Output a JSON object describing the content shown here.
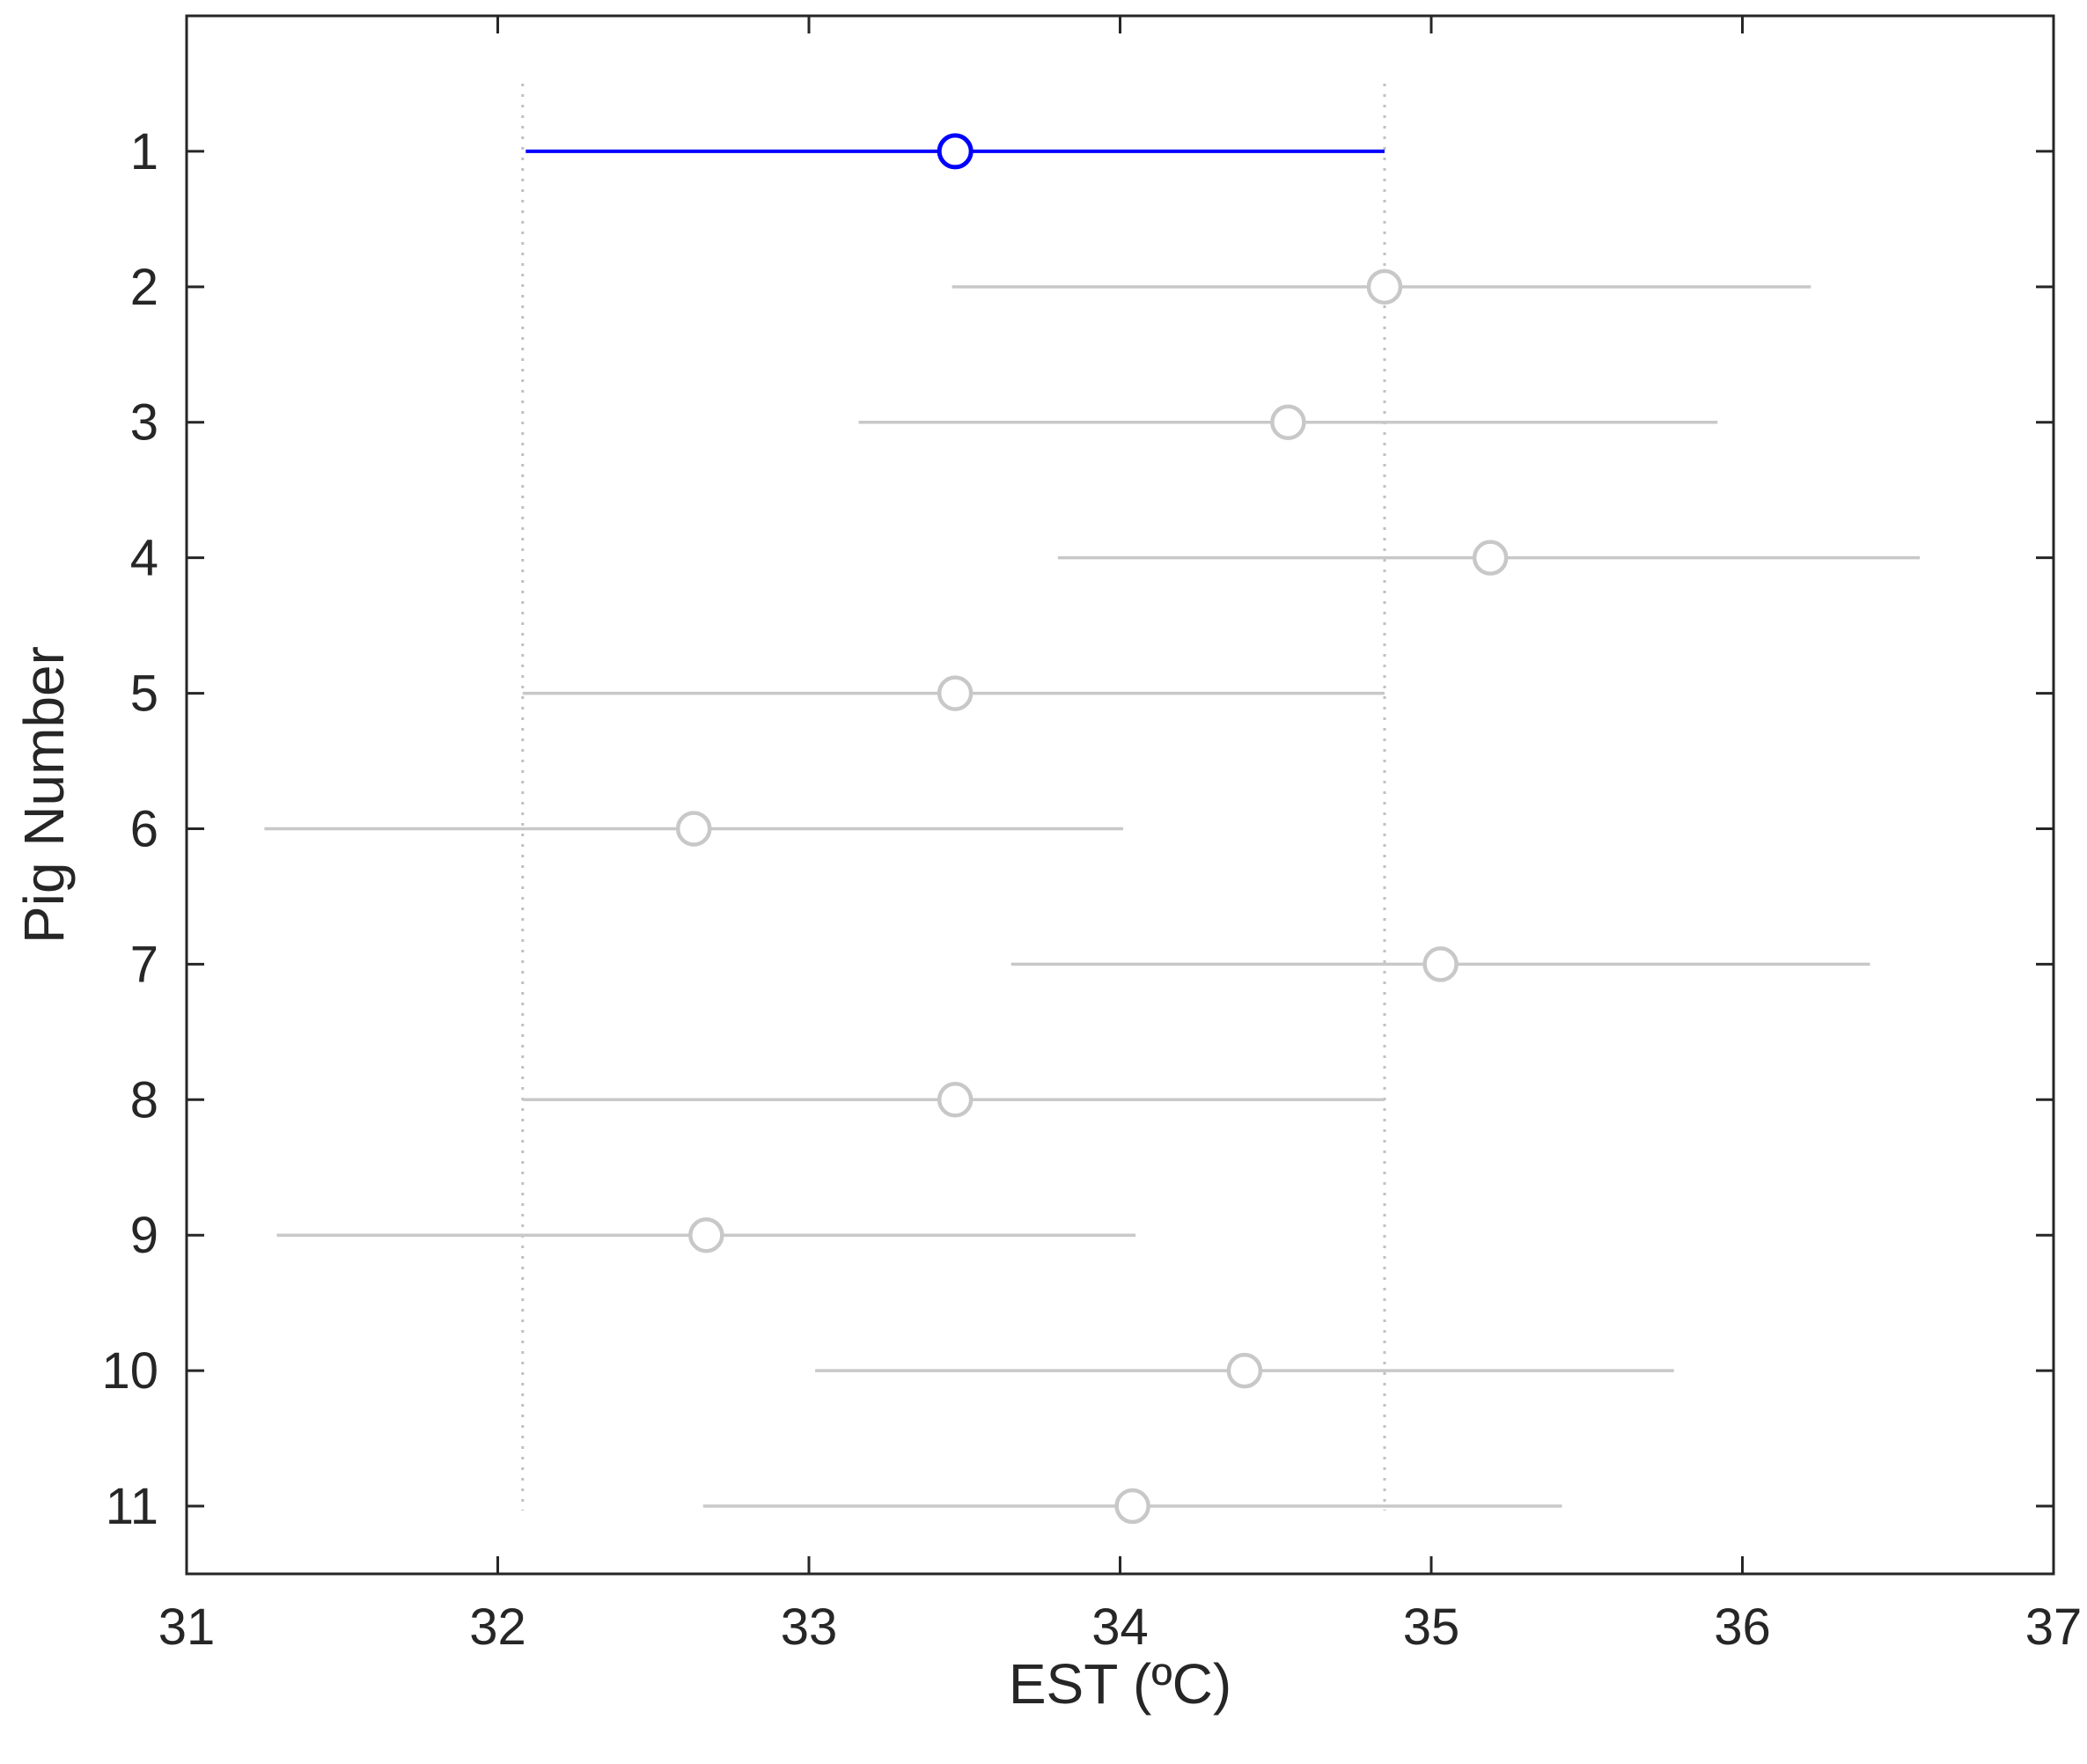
{
  "chart_data": {
    "type": "scatter",
    "subtype": "interval-plot (multiple comparison)",
    "title": "",
    "xlabel": "EST (ºC)",
    "ylabel": "Pig Number",
    "xlim": [
      31,
      37
    ],
    "ylim": [
      0,
      11.5
    ],
    "y_reversed": true,
    "xticks": [
      "31",
      "32",
      "33",
      "34",
      "35",
      "36",
      "37"
    ],
    "yticks": [
      "1",
      "2",
      "3",
      "4",
      "5",
      "6",
      "7",
      "8",
      "9",
      "10",
      "11"
    ],
    "grid": false,
    "legend": null,
    "colors": {
      "selected": "#0000ff",
      "other": "#c8c8c8",
      "reference_lines": "#c0c0c0",
      "axes": "#262626"
    },
    "reference_lines": {
      "style": "dotted",
      "x": [
        32.08,
        34.85
      ]
    },
    "points": [
      {
        "pig": "1",
        "mean": 33.47,
        "lower": 32.09,
        "upper": 34.85,
        "selected": true
      },
      {
        "pig": "2",
        "mean": 34.85,
        "lower": 33.46,
        "upper": 36.22,
        "selected": false
      },
      {
        "pig": "3",
        "mean": 34.54,
        "lower": 33.16,
        "upper": 35.92,
        "selected": false
      },
      {
        "pig": "4",
        "mean": 35.19,
        "lower": 33.8,
        "upper": 36.57,
        "selected": false
      },
      {
        "pig": "5",
        "mean": 33.47,
        "lower": 32.08,
        "upper": 34.85,
        "selected": false
      },
      {
        "pig": "6",
        "mean": 32.63,
        "lower": 31.25,
        "upper": 34.01,
        "selected": false
      },
      {
        "pig": "7",
        "mean": 35.03,
        "lower": 33.65,
        "upper": 36.41,
        "selected": false
      },
      {
        "pig": "8",
        "mean": 33.47,
        "lower": 32.08,
        "upper": 34.85,
        "selected": false
      },
      {
        "pig": "9",
        "mean": 32.67,
        "lower": 31.29,
        "upper": 34.05,
        "selected": false
      },
      {
        "pig": "10",
        "mean": 34.4,
        "lower": 33.02,
        "upper": 35.78,
        "selected": false
      },
      {
        "pig": "11",
        "mean": 34.04,
        "lower": 32.66,
        "upper": 35.42,
        "selected": false
      }
    ]
  }
}
